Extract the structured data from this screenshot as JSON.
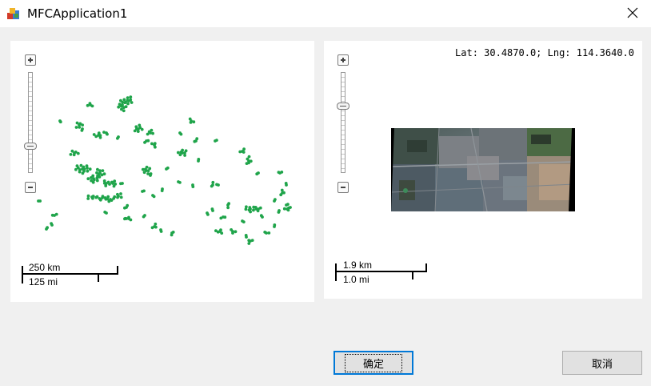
{
  "window": {
    "title": "MFCApplication1",
    "close_icon": "close-icon",
    "app_icon": "mfc-app-icon"
  },
  "left_map": {
    "zoom_in_icon": "plus-icon",
    "zoom_out_icon": "minus-icon",
    "zoom_level_fraction": 0.27,
    "marker_color": "#1fa44a",
    "scale": {
      "metric": "250 km",
      "imperial": "125 mi"
    }
  },
  "right_map": {
    "coordinates": "Lat: 30.4870.0; Lng: 114.3640.0",
    "zoom_in_icon": "plus-icon",
    "zoom_out_icon": "minus-icon",
    "zoom_level_fraction": 0.65,
    "scale": {
      "metric": "1.9 km",
      "imperial": "1.0 mi"
    }
  },
  "buttons": {
    "ok": "确定",
    "cancel": "取消"
  }
}
